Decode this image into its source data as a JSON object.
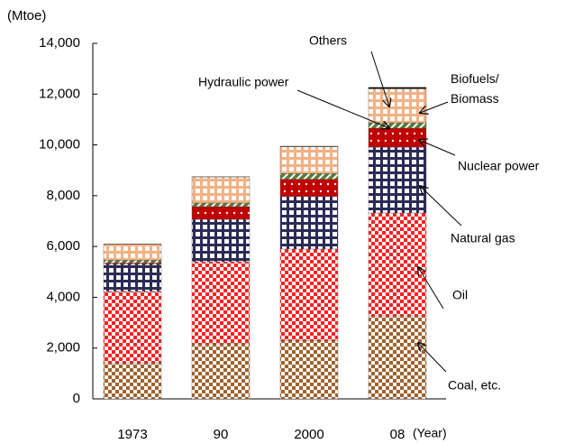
{
  "chart_data": {
    "type": "stacked_bar",
    "y_label": "(Mtoe)",
    "x_label": "(Year)",
    "categories": [
      "1973",
      "90",
      "2000",
      "08"
    ],
    "ylim": [
      0,
      14000
    ],
    "yticks": [
      0,
      {
        "value": 2000,
        "label": "2,000"
      },
      {
        "value": 4000,
        "label": "4,000"
      },
      {
        "value": 6000,
        "label": "6,000"
      },
      {
        "value": 8000,
        "label": "8,000"
      },
      {
        "value": 10000,
        "label": "10,000"
      },
      {
        "value": 12000,
        "label": "12,000"
      },
      {
        "value": 14000,
        "label": "14,000"
      }
    ],
    "series": [
      {
        "name": "Coal, etc.",
        "color": "#a0622d",
        "values": [
          1420,
          2170,
          2290,
          3270
        ]
      },
      {
        "name": "Oil",
        "color": "#ff2020",
        "values": [
          2810,
          3230,
          3610,
          4050
        ]
      },
      {
        "name": "Natural gas",
        "color": "#2b2b55",
        "values": [
          1070,
          1670,
          2070,
          2590
        ]
      },
      {
        "name": "Nuclear power",
        "color": "#c00000",
        "values": [
          50,
          500,
          680,
          750
        ]
      },
      {
        "name": "Hydraulic power",
        "color": "#5a7a3a",
        "values": [
          110,
          140,
          220,
          210
        ]
      },
      {
        "name": "Biofuels/ Biomass",
        "color": "#f4b183",
        "values": [
          630,
          1030,
          1060,
          1340
        ]
      },
      {
        "name": "Others",
        "color": "#000000",
        "values": [
          10,
          10,
          20,
          60
        ]
      }
    ]
  }
}
